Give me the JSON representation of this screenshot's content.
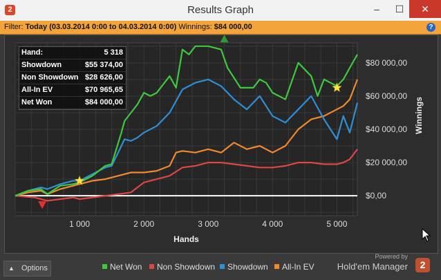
{
  "window": {
    "title": "Results Graph",
    "app_icon": "2",
    "minimize": "–",
    "maximize": "☐",
    "close": "✕"
  },
  "filter": {
    "label": "Filter:",
    "value": "Today (03.03.2014 0:00 to 04.03.2014 0:00)",
    "winnings_label": "Winnings:",
    "winnings_value": "$84 000,00",
    "help": "?"
  },
  "stats": [
    {
      "key": "Hand:",
      "value": "5 318"
    },
    {
      "key": "Showdown",
      "value": "$55 374,00"
    },
    {
      "key": "Non Showdown",
      "value": "$28 626,00"
    },
    {
      "key": "All-In EV",
      "value": "$70 965,65"
    },
    {
      "key": "Net Won",
      "value": "$84 000,00"
    }
  ],
  "colors": {
    "net_won": "#3ec93e",
    "non_showdown": "#e04545",
    "showdown": "#2f8fd6",
    "all_in_ev": "#f08a2d",
    "zero_line": "#ffffff"
  },
  "legend": [
    "Net Won",
    "Non Showdown",
    "Showdown",
    "All-In EV"
  ],
  "options": {
    "label": "Options",
    "icon": "chevron-up-icon"
  },
  "branding": {
    "powered": "Powered by",
    "name": "Hold'em Manager",
    "logo": "2"
  },
  "chart_data": {
    "type": "line",
    "xlabel": "Hands",
    "ylabel": "Winnings",
    "xlim": [
      0,
      5318
    ],
    "ylim": [
      -12000,
      92000
    ],
    "x_ticks": [
      1000,
      2000,
      3000,
      4000,
      5000
    ],
    "x_tick_labels": [
      "1 000",
      "2 000",
      "3 000",
      "4 000",
      "5 000"
    ],
    "y_ticks": [
      0,
      20000,
      40000,
      60000,
      80000
    ],
    "y_tick_labels": [
      "$0,00",
      "$20 000,00",
      "$40 000,00",
      "$60 000,00",
      "$80 000,00"
    ],
    "series": [
      {
        "name": "Net Won",
        "x": [
          0,
          200,
          400,
          500,
          700,
          900,
          1000,
          1200,
          1400,
          1500,
          1650,
          1700,
          1800,
          1900,
          2000,
          2100,
          2200,
          2400,
          2500,
          2600,
          2700,
          2800,
          3000,
          3200,
          3300,
          3500,
          3700,
          3800,
          3900,
          4000,
          4200,
          4400,
          4600,
          4700,
          4800,
          4900,
          5000,
          5100,
          5200,
          5318
        ],
        "y": [
          0,
          3000,
          4000,
          1000,
          6000,
          7000,
          8000,
          12000,
          18000,
          19000,
          38000,
          45000,
          50000,
          55000,
          62000,
          60000,
          62000,
          72000,
          65000,
          88000,
          85000,
          90000,
          90000,
          88000,
          77000,
          65000,
          65000,
          70000,
          68000,
          62000,
          58000,
          80000,
          72000,
          60000,
          70000,
          68000,
          66000,
          70000,
          77000,
          85000
        ]
      },
      {
        "name": "Non Showdown",
        "x": [
          0,
          300,
          500,
          700,
          900,
          1000,
          1200,
          1400,
          1600,
          1800,
          2000,
          2200,
          2400,
          2600,
          2800,
          3000,
          3200,
          3400,
          3600,
          3800,
          4000,
          4200,
          4400,
          4600,
          4800,
          5000,
          5100,
          5200,
          5318
        ],
        "y": [
          0,
          -1000,
          -3000,
          -2000,
          -1000,
          -2000,
          -1000,
          0,
          1000,
          2000,
          8000,
          10000,
          12000,
          17000,
          18000,
          20000,
          20000,
          19000,
          18000,
          17000,
          17000,
          18000,
          20000,
          20000,
          19000,
          19000,
          20000,
          22000,
          28000
        ]
      },
      {
        "name": "Showdown",
        "x": [
          0,
          200,
          400,
          500,
          700,
          900,
          1000,
          1200,
          1400,
          1500,
          1650,
          1700,
          1800,
          1900,
          2000,
          2200,
          2400,
          2600,
          2800,
          3000,
          3200,
          3400,
          3600,
          3800,
          4000,
          4200,
          4400,
          4600,
          4800,
          5000,
          5100,
          5200,
          5318
        ],
        "y": [
          0,
          3000,
          5000,
          4000,
          7000,
          9000,
          9000,
          13000,
          17000,
          18000,
          30000,
          34000,
          33000,
          35000,
          38000,
          42000,
          50000,
          64000,
          68000,
          70000,
          66000,
          58000,
          52000,
          60000,
          48000,
          44000,
          52000,
          60000,
          46000,
          34000,
          48000,
          38000,
          56000
        ]
      },
      {
        "name": "All-In EV",
        "x": [
          0,
          200,
          400,
          500,
          700,
          900,
          1000,
          1200,
          1400,
          1500,
          1600,
          1800,
          2000,
          2200,
          2400,
          2500,
          2600,
          2800,
          3000,
          3200,
          3400,
          3600,
          3800,
          4000,
          4200,
          4400,
          4600,
          4800,
          5000,
          5100,
          5200,
          5318
        ],
        "y": [
          0,
          2000,
          3000,
          1000,
          4000,
          6000,
          7000,
          9000,
          10000,
          11000,
          12000,
          14000,
          14000,
          15000,
          18000,
          26000,
          27000,
          26000,
          28000,
          26000,
          32000,
          28000,
          30000,
          26000,
          30000,
          40000,
          46000,
          48000,
          52000,
          54000,
          58000,
          70000
        ]
      }
    ],
    "markers": [
      {
        "type": "triangle-up",
        "color": "#2e9b2e",
        "x": 3250,
        "y": 94000
      },
      {
        "type": "triangle-down",
        "color": "#e03030",
        "x": 420,
        "y": -5000
      },
      {
        "type": "star",
        "color": "#ffe14a",
        "x": 1000,
        "y": 9000
      },
      {
        "type": "star",
        "color": "#ffe14a",
        "x": 5000,
        "y": 65000
      }
    ]
  }
}
